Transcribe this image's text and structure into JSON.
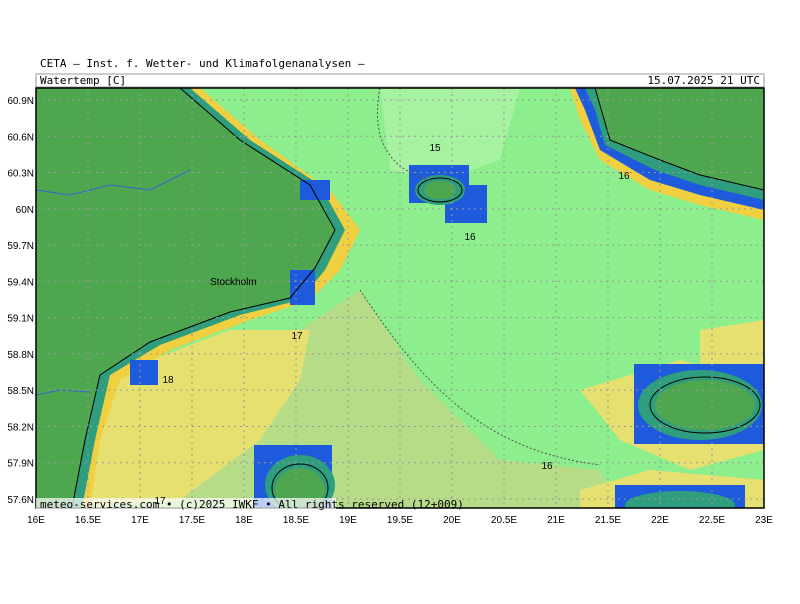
{
  "header": {
    "title": "CETA — Inst. f. Wetter- und Klimafolgenanalysen —",
    "variable": "Watertemp [C]",
    "valid_time": "15.07.2025 21 UTC"
  },
  "map": {
    "lat_labels": [
      "60.9N",
      "60.6N",
      "60.3N",
      "60N",
      "59.7N",
      "59.4N",
      "59.1N",
      "58.8N",
      "58.5N",
      "58.2N",
      "57.9N",
      "57.6N"
    ],
    "lon_labels": [
      "16E",
      "16.5E",
      "17E",
      "17.5E",
      "18E",
      "18.5E",
      "19E",
      "19.5E",
      "20E",
      "20.5E",
      "21E",
      "21.5E",
      "22E",
      "22.5E",
      "23E"
    ],
    "place_labels": [
      "Stockholm"
    ],
    "contour_labels": [
      "15",
      "16",
      "16",
      "17",
      "18",
      "16",
      "17"
    ]
  },
  "footer": "meteo-services.com • (c)2025 IWKF • All rights reserved (12+009)"
}
